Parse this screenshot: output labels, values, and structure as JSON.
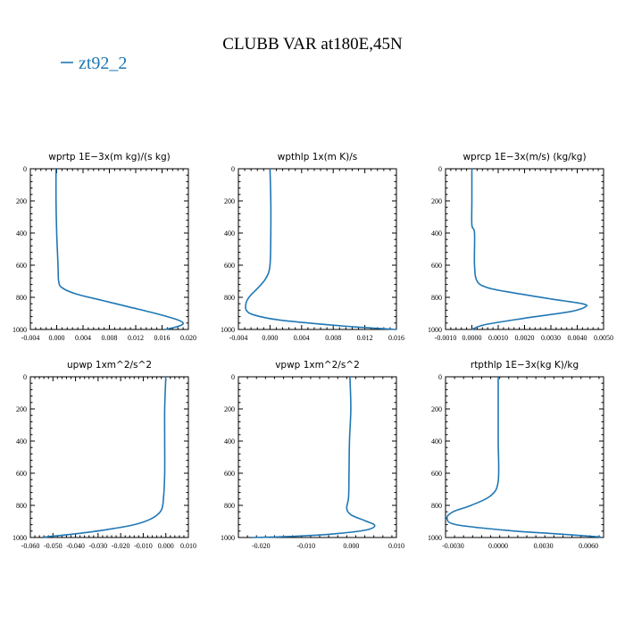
{
  "figure": {
    "title": "CLUBB VAR at180E,45N",
    "legend": [
      {
        "label": "zt92_2",
        "color": "#1f77b4"
      }
    ]
  },
  "chart_data": [
    {
      "type": "line",
      "title": "wprtp  1E−3x(m kg)/(s kg)",
      "series_name": "zt92_2",
      "xlim": [
        -0.004,
        0.02
      ],
      "ylim": [
        1000,
        0
      ],
      "xticks": [
        -0.004,
        0.0,
        0.004,
        0.008,
        0.012,
        0.016,
        0.02
      ],
      "xtick_labels": [
        "-0.004",
        "0.000",
        "0.004",
        "0.008",
        "0.012",
        "0.016",
        "0.020"
      ],
      "yticks": [
        0,
        200,
        400,
        600,
        800,
        1000
      ],
      "ytick_labels": [
        "0",
        "200",
        "400",
        "600",
        "800",
        "1000"
      ],
      "points": [
        [
          -0.0001,
          0
        ],
        [
          -0.0001,
          200
        ],
        [
          0.0,
          400
        ],
        [
          0.0002,
          600
        ],
        [
          0.0003,
          700
        ],
        [
          0.0008,
          740
        ],
        [
          0.003,
          780
        ],
        [
          0.007,
          820
        ],
        [
          0.011,
          860
        ],
        [
          0.015,
          900
        ],
        [
          0.018,
          935
        ],
        [
          0.0192,
          960
        ],
        [
          0.0185,
          980
        ],
        [
          0.0165,
          1000
        ]
      ]
    },
    {
      "type": "line",
      "title": "wpthlp  1x(m K)/s",
      "series_name": "zt92_2",
      "xlim": [
        -0.004,
        0.016
      ],
      "ylim": [
        1000,
        0
      ],
      "xticks": [
        -0.004,
        0.0,
        0.004,
        0.008,
        0.012,
        0.016
      ],
      "xtick_labels": [
        "-0.004",
        "0.000",
        "0.004",
        "0.008",
        "0.012",
        "0.016"
      ],
      "yticks": [
        0,
        200,
        400,
        600,
        800,
        1000
      ],
      "ytick_labels": [
        "0",
        "200",
        "400",
        "600",
        "800",
        "1000"
      ],
      "points": [
        [
          0.0,
          0
        ],
        [
          0.0001,
          200
        ],
        [
          0.0001,
          400
        ],
        [
          0.0,
          600
        ],
        [
          -0.0005,
          680
        ],
        [
          -0.0015,
          740
        ],
        [
          -0.0025,
          790
        ],
        [
          -0.003,
          830
        ],
        [
          -0.003,
          880
        ],
        [
          -0.002,
          910
        ],
        [
          0.001,
          940
        ],
        [
          0.006,
          965
        ],
        [
          0.011,
          985
        ],
        [
          0.016,
          1000
        ]
      ]
    },
    {
      "type": "line",
      "title": "wprcp  1E−3x(m/s) (kg/kg)",
      "series_name": "zt92_2",
      "xlim": [
        -0.001,
        0.005
      ],
      "ylim": [
        1000,
        0
      ],
      "xticks": [
        -0.001,
        0.0,
        0.001,
        0.002,
        0.003,
        0.004,
        0.005
      ],
      "xtick_labels": [
        "-0.0010",
        "0.0000",
        "0.0010",
        "0.0020",
        "0.0030",
        "0.0040",
        "0.0050"
      ],
      "yticks": [
        0,
        200,
        400,
        600,
        800,
        1000
      ],
      "ytick_labels": [
        "0",
        "200",
        "400",
        "600",
        "800",
        "1000"
      ],
      "points": [
        [
          0.0,
          0
        ],
        [
          0.0,
          200
        ],
        [
          0.0,
          350
        ],
        [
          0.0001,
          400
        ],
        [
          0.0001,
          600
        ],
        [
          0.0002,
          700
        ],
        [
          0.0006,
          740
        ],
        [
          0.0015,
          770
        ],
        [
          0.003,
          810
        ],
        [
          0.0042,
          840
        ],
        [
          0.0043,
          860
        ],
        [
          0.0037,
          890
        ],
        [
          0.002,
          930
        ],
        [
          0.0005,
          970
        ],
        [
          0.0,
          1000
        ]
      ]
    },
    {
      "type": "line",
      "title": "upwp  1xm^2/s^2",
      "series_name": "zt92_2",
      "xlim": [
        -0.06,
        0.01
      ],
      "ylim": [
        1000,
        0
      ],
      "xticks": [
        -0.06,
        -0.05,
        -0.04,
        -0.03,
        -0.02,
        -0.01,
        0.0,
        0.01
      ],
      "xtick_labels": [
        "-0.060",
        "-0.050",
        "-0.040",
        "-0.030",
        "-0.020",
        "-0.010",
        "0.000",
        "0.010"
      ],
      "yticks": [
        0,
        200,
        400,
        600,
        800,
        1000
      ],
      "ytick_labels": [
        "0",
        "200",
        "400",
        "600",
        "800",
        "1000"
      ],
      "points": [
        [
          0.0,
          0
        ],
        [
          -0.0005,
          200
        ],
        [
          -0.0005,
          400
        ],
        [
          -0.0005,
          600
        ],
        [
          -0.001,
          750
        ],
        [
          -0.002,
          830
        ],
        [
          -0.006,
          880
        ],
        [
          -0.014,
          920
        ],
        [
          -0.028,
          955
        ],
        [
          -0.042,
          980
        ],
        [
          -0.052,
          995
        ],
        [
          -0.054,
          1000
        ]
      ]
    },
    {
      "type": "line",
      "title": "vpwp  1xm^2/s^2",
      "series_name": "zt92_2",
      "xlim": [
        -0.025,
        0.01
      ],
      "ylim": [
        1000,
        0
      ],
      "xticks": [
        -0.02,
        -0.01,
        0.0,
        0.01
      ],
      "xtick_labels": [
        "-0.020",
        "-0.010",
        "0.000",
        "0.010"
      ],
      "yticks": [
        0,
        200,
        400,
        600,
        800,
        1000
      ],
      "ytick_labels": [
        "0",
        "200",
        "400",
        "600",
        "800",
        "1000"
      ],
      "points": [
        [
          -0.0003,
          0
        ],
        [
          -0.0001,
          200
        ],
        [
          -0.0004,
          400
        ],
        [
          -0.0005,
          600
        ],
        [
          -0.0006,
          750
        ],
        [
          -0.001,
          820
        ],
        [
          0.0,
          860
        ],
        [
          0.003,
          895
        ],
        [
          0.0052,
          925
        ],
        [
          0.003,
          955
        ],
        [
          -0.005,
          980
        ],
        [
          -0.015,
          995
        ],
        [
          -0.022,
          1000
        ]
      ]
    },
    {
      "type": "line",
      "title": "rtpthlp  1E−3x(kg K)/kg",
      "series_name": "zt92_2",
      "xlim": [
        -0.0035,
        0.007
      ],
      "ylim": [
        1000,
        0
      ],
      "xticks": [
        -0.003,
        0.0,
        0.003,
        0.006
      ],
      "xtick_labels": [
        "-0.0030",
        "0.0000",
        "0.0030",
        "0.0060"
      ],
      "yticks": [
        0,
        200,
        400,
        600,
        800,
        1000
      ],
      "ytick_labels": [
        "0",
        "200",
        "400",
        "600",
        "800",
        "1000"
      ],
      "points": [
        [
          0.0,
          0
        ],
        [
          0.0,
          200
        ],
        [
          0.0,
          400
        ],
        [
          0.0,
          650
        ],
        [
          -0.0005,
          740
        ],
        [
          -0.0018,
          800
        ],
        [
          -0.003,
          840
        ],
        [
          -0.0034,
          880
        ],
        [
          -0.0028,
          920
        ],
        [
          0.0005,
          955
        ],
        [
          0.004,
          978
        ],
        [
          0.0065,
          995
        ],
        [
          0.0068,
          1000
        ]
      ]
    }
  ]
}
